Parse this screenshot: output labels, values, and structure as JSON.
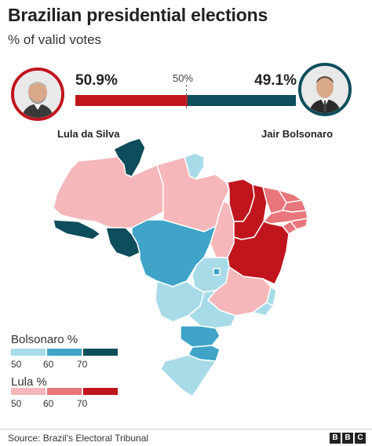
{
  "title": "Brazilian presidential elections",
  "subtitle": "% of valid votes",
  "candidates": {
    "lula": {
      "name": "Lula da Silva",
      "pct_label": "50.9%",
      "share": 50.9,
      "color": "#c0151d"
    },
    "bolsonaro": {
      "name": "Jair Bolsonaro",
      "pct_label": "49.1%",
      "share": 49.1,
      "color": "#0e4d5c"
    }
  },
  "midpoint_label": "50%",
  "legend": {
    "bolsonaro": {
      "title": "Bolsonaro %",
      "colors": [
        "#a8dbe8",
        "#3fa4c8",
        "#0e4d5c"
      ],
      "ticks": [
        "50",
        "60",
        "70"
      ]
    },
    "lula": {
      "title": "Lula %",
      "colors": [
        "#f5b7b9",
        "#e8767a",
        "#c0151d"
      ],
      "ticks": [
        "50",
        "60",
        "70"
      ]
    }
  },
  "map_regions": [
    {
      "id": "AC",
      "winner": "Bolsonaro",
      "shade": "#0e4d5c"
    },
    {
      "id": "AM",
      "winner": "Lula",
      "shade": "#f5b7b9"
    },
    {
      "id": "RR",
      "winner": "Bolsonaro",
      "shade": "#0e4d5c"
    },
    {
      "id": "AP",
      "winner": "Bolsonaro",
      "shade": "#a8dbe8"
    },
    {
      "id": "PA",
      "winner": "Lula",
      "shade": "#f5b7b9"
    },
    {
      "id": "RO",
      "winner": "Bolsonaro",
      "shade": "#0e4d5c"
    },
    {
      "id": "TO",
      "winner": "Lula",
      "shade": "#f5b7b9"
    },
    {
      "id": "MA",
      "winner": "Lula",
      "shade": "#c0151d"
    },
    {
      "id": "PI",
      "winner": "Lula",
      "shade": "#c0151d"
    },
    {
      "id": "CE",
      "winner": "Lula",
      "shade": "#e8767a"
    },
    {
      "id": "RN",
      "winner": "Lula",
      "shade": "#e8767a"
    },
    {
      "id": "PB",
      "winner": "Lula",
      "shade": "#e8767a"
    },
    {
      "id": "PE",
      "winner": "Lula",
      "shade": "#e8767a"
    },
    {
      "id": "AL",
      "winner": "Lula",
      "shade": "#e8767a"
    },
    {
      "id": "SE",
      "winner": "Lula",
      "shade": "#e8767a"
    },
    {
      "id": "BA",
      "winner": "Lula",
      "shade": "#c0151d"
    },
    {
      "id": "MT",
      "winner": "Bolsonaro",
      "shade": "#3fa4c8"
    },
    {
      "id": "GO",
      "winner": "Bolsonaro",
      "shade": "#a8dbe8"
    },
    {
      "id": "DF",
      "winner": "Bolsonaro",
      "shade": "#3fa4c8"
    },
    {
      "id": "MG",
      "winner": "Lula",
      "shade": "#f5b7b9"
    },
    {
      "id": "ES",
      "winner": "Bolsonaro",
      "shade": "#a8dbe8"
    },
    {
      "id": "RJ",
      "winner": "Bolsonaro",
      "shade": "#a8dbe8"
    },
    {
      "id": "MS",
      "winner": "Bolsonaro",
      "shade": "#a8dbe8"
    },
    {
      "id": "SP",
      "winner": "Bolsonaro",
      "shade": "#a8dbe8"
    },
    {
      "id": "PR",
      "winner": "Bolsonaro",
      "shade": "#3fa4c8"
    },
    {
      "id": "SC",
      "winner": "Bolsonaro",
      "shade": "#3fa4c8"
    },
    {
      "id": "RS",
      "winner": "Bolsonaro",
      "shade": "#a8dbe8"
    }
  ],
  "source": "Source: Brazil's Electoral Tribunal",
  "brand": [
    "B",
    "B",
    "C"
  ]
}
